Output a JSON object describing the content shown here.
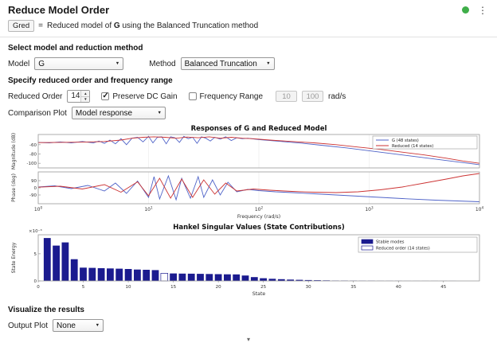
{
  "header": {
    "title": "Reduce Model Order"
  },
  "summary": {
    "output_var": "Gred",
    "equals": "=",
    "prefix": "Reduced model of ",
    "model": "G",
    "suffix": " using the Balanced Truncation method"
  },
  "sections": {
    "select": "Select model and reduction method",
    "specify": "Specify reduced order and frequency range",
    "visualize": "Visualize the results"
  },
  "controls": {
    "model_label": "Model",
    "model_value": "G",
    "method_label": "Method",
    "method_value": "Balanced Truncation",
    "reduced_order_label": "Reduced Order",
    "reduced_order_value": "14",
    "preserve_dc_label": "Preserve DC Gain",
    "freq_range_label": "Frequency Range",
    "freq_min": "10",
    "freq_max": "100",
    "freq_unit": "rad/s",
    "comparison_label": "Comparison Plot",
    "comparison_value": "Model response",
    "output_label": "Output Plot",
    "output_value": "None"
  },
  "icons": {
    "dot": "status-dot",
    "menu": "⋮",
    "dd_arrow": "▼",
    "up": "▲",
    "down": "▼",
    "collapse": "▾"
  },
  "chart_data": [
    {
      "type": "line",
      "title": "Responses of G and Reduced Model",
      "xlabel": "Frequency (rad/s)",
      "xscale": "log",
      "xlim_log10": [
        0,
        4
      ],
      "xtick_exponents": [
        0,
        1,
        2,
        3,
        4
      ],
      "subplots": [
        {
          "ylabel": "Magnitude (dB)",
          "ylim": [
            -110,
            -38
          ],
          "yticks": [
            -100,
            -80,
            -60
          ],
          "legend": true,
          "series": [
            {
              "name": "G (48 states)",
              "color": "#4f63c8",
              "x": [
                0,
                0.1,
                0.2,
                0.3,
                0.4,
                0.5,
                0.55,
                0.6,
                0.65,
                0.7,
                0.75,
                0.8,
                0.85,
                0.9,
                0.95,
                1.0,
                1.04,
                1.08,
                1.12,
                1.16,
                1.2,
                1.24,
                1.28,
                1.32,
                1.36,
                1.4,
                1.44,
                1.48,
                1.52,
                1.56,
                1.6,
                1.65,
                1.7,
                1.75,
                1.8,
                1.85,
                1.9,
                2.0,
                2.1,
                2.25,
                2.4,
                2.6,
                2.8,
                3.0,
                3.2,
                3.4,
                3.6,
                3.8,
                4.0
              ],
              "y": [
                -55,
                -56,
                -54,
                -56,
                -53,
                -56,
                -52,
                -57,
                -50,
                -58,
                -47,
                -60,
                -46,
                -44,
                -54,
                -42,
                -56,
                -44,
                -43,
                -58,
                -43,
                -45,
                -55,
                -42,
                -47,
                -44,
                -57,
                -43,
                -46,
                -52,
                -44,
                -48,
                -43,
                -51,
                -45,
                -47,
                -46,
                -49,
                -51,
                -54,
                -57,
                -62,
                -67,
                -73,
                -79,
                -85,
                -91,
                -97,
                -103
              ]
            },
            {
              "name": "Reduced (14 states)",
              "color": "#cc3333",
              "x": [
                0,
                0.2,
                0.4,
                0.6,
                0.75,
                0.85,
                0.95,
                1.05,
                1.15,
                1.25,
                1.35,
                1.45,
                1.55,
                1.65,
                1.75,
                1.85,
                1.95,
                2.1,
                2.3,
                2.5,
                2.7,
                2.9,
                3.1,
                3.3,
                3.5,
                3.7,
                3.85,
                4.0
              ],
              "y": [
                -55.5,
                -55,
                -54.5,
                -53,
                -50,
                -46,
                -44,
                -43,
                -44,
                -46,
                -43.5,
                -45,
                -43,
                -46,
                -44,
                -46,
                -47,
                -50,
                -53,
                -56,
                -60,
                -65,
                -70,
                -76,
                -82,
                -89,
                -95,
                -100
              ]
            }
          ]
        },
        {
          "ylabel": "Phase (deg)",
          "ylim": [
            -200,
            200
          ],
          "yticks": [
            -90,
            0,
            90
          ],
          "legend": false,
          "series": [
            {
              "name": "G (48 states)",
              "color": "#4f63c8",
              "x": [
                0,
                0.15,
                0.3,
                0.45,
                0.6,
                0.7,
                0.8,
                0.9,
                1.0,
                1.05,
                1.1,
                1.18,
                1.25,
                1.3,
                1.38,
                1.45,
                1.5,
                1.58,
                1.65,
                1.72,
                1.8,
                1.9,
                2.0,
                2.15,
                2.3,
                2.5,
                2.7,
                2.9,
                3.1,
                3.3,
                3.6,
                3.8,
                4.0
              ],
              "y": [
                10,
                25,
                -10,
                30,
                -40,
                60,
                -70,
                85,
                -120,
                140,
                -140,
                150,
                -150,
                120,
                -130,
                140,
                -120,
                100,
                -90,
                70,
                -50,
                -20,
                -35,
                -50,
                -60,
                -75,
                -90,
                -105,
                -120,
                -135,
                -155,
                -165,
                -175
              ]
            },
            {
              "name": "Reduced (14 states)",
              "color": "#cc3333",
              "x": [
                0,
                0.2,
                0.4,
                0.6,
                0.75,
                0.9,
                1.0,
                1.1,
                1.2,
                1.3,
                1.4,
                1.5,
                1.6,
                1.7,
                1.8,
                1.95,
                2.1,
                2.3,
                2.5,
                2.7,
                2.9,
                3.1,
                3.3,
                3.5,
                3.7,
                3.85,
                4.0
              ],
              "y": [
                8,
                20,
                -15,
                40,
                -55,
                75,
                -100,
                120,
                -130,
                110,
                -120,
                100,
                -80,
                60,
                -40,
                -15,
                -30,
                -45,
                -55,
                -60,
                -50,
                -25,
                10,
                60,
                110,
                150,
                180
              ]
            }
          ]
        }
      ]
    },
    {
      "type": "bar",
      "title": "Hankel Singular Values (State Contributions)",
      "xlabel": "State",
      "ylabel": "State Energy",
      "multiplier": "×10⁻³",
      "ylim": [
        0,
        8.5
      ],
      "yticks": [
        0,
        5
      ],
      "xticks": [
        0,
        5,
        10,
        15,
        20,
        25,
        30,
        35,
        40,
        45
      ],
      "bar_color": "#1b1b8f",
      "highlight_index": 13,
      "legend": [
        {
          "label": "Stable modes",
          "fill": "#1b1b8f"
        },
        {
          "label": "Reduced order (14 states)",
          "fill": "#ffffff"
        }
      ],
      "values": [
        7.9,
        6.5,
        7.1,
        4.0,
        2.45,
        2.4,
        2.35,
        2.3,
        2.25,
        2.2,
        2.1,
        2.05,
        2.0,
        1.4,
        1.38,
        1.35,
        1.33,
        1.3,
        1.28,
        1.25,
        1.22,
        1.2,
        1.0,
        0.7,
        0.5,
        0.4,
        0.32,
        0.25,
        0.2,
        0.16,
        0.13,
        0.1,
        0.08,
        0.07,
        0.06,
        0.05,
        0.04,
        0.035,
        0.03,
        0.025,
        0.02,
        0.018,
        0.015,
        0.012,
        0.01,
        0.008,
        0.006,
        0.005
      ]
    }
  ]
}
